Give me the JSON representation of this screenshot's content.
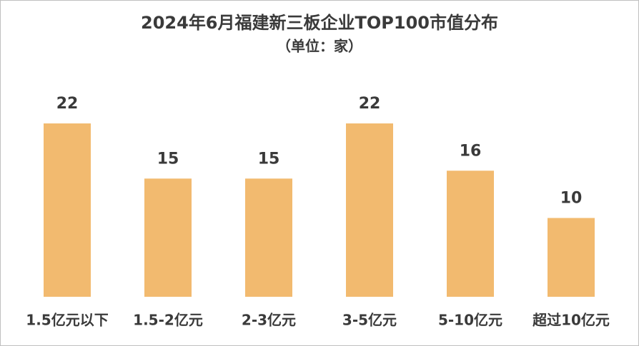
{
  "chart_data": {
    "type": "bar",
    "title": "2024年6月福建新三板企业TOP100市值分布",
    "subtitle": "（单位：家）",
    "categories": [
      "1.5亿元以下",
      "1.5-2亿元",
      "2-3亿元",
      "3-5亿元",
      "5-10亿元",
      "超过10亿元"
    ],
    "values": [
      22,
      15,
      15,
      22,
      16,
      10
    ],
    "color": "#f2ba6f"
  }
}
